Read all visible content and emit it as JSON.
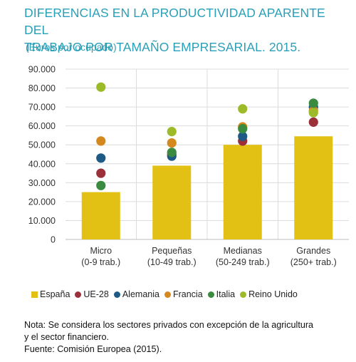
{
  "header": {
    "title_line1": "DIFERENCIAS EN LA PRODUCTIVIDAD APARENTE DEL",
    "title_line2": "TRABAJO POR TAMAÑO EMPRESARIAL. 2015.",
    "subtitle": "(Euros por ocupado)"
  },
  "colors": {
    "title": "#2aa0b8",
    "España": "#e3c014",
    "UE-28": "#9b2f3a",
    "Alemania": "#1f5a86",
    "Francia": "#d4891e",
    "Italia": "#3a8a3f",
    "Reino Unido": "#9dbb28"
  },
  "chart_data": {
    "type": "bar",
    "categories": [
      [
        "Micro",
        "(0-9 trab.)"
      ],
      [
        "Pequeñas",
        "(10-49 trab.)"
      ],
      [
        "Medianas",
        "(50-249 trab.)"
      ],
      [
        "Grandes",
        "(250+ trab.)"
      ]
    ],
    "bar_series": {
      "name": "España",
      "values": [
        25000,
        39000,
        50000,
        54500
      ]
    },
    "point_series": [
      {
        "name": "UE-28",
        "values": [
          35000,
          45000,
          52000,
          62000
        ]
      },
      {
        "name": "Alemania",
        "values": [
          43000,
          44000,
          54500,
          70000
        ]
      },
      {
        "name": "Francia",
        "values": [
          52000,
          51000,
          59500,
          68000
        ]
      },
      {
        "name": "Italia",
        "values": [
          28500,
          46000,
          58500,
          72000
        ]
      },
      {
        "name": "Reino Unido",
        "values": [
          80500,
          57000,
          69000,
          67000
        ]
      }
    ],
    "yticks": [
      "0",
      "10.000",
      "20.000",
      "30.000",
      "40.000",
      "50.000",
      "60.000",
      "70.000",
      "80.000",
      "90.000"
    ],
    "ylim": [
      0,
      90000
    ],
    "grid": true,
    "legend_position": "bottom",
    "title": "DIFERENCIAS EN LA PRODUCTIVIDAD APARENTE DEL TRABAJO POR TAMAÑO EMPRESARIAL. 2015.",
    "subtitle": "(Euros por ocupado)",
    "xlabel": "",
    "ylabel": ""
  },
  "legend": [
    {
      "label": "España",
      "shape": "square"
    },
    {
      "label": "UE-28",
      "shape": "circle"
    },
    {
      "label": "Alemania",
      "shape": "circle"
    },
    {
      "label": "Francia",
      "shape": "circle"
    },
    {
      "label": "Italia",
      "shape": "circle"
    },
    {
      "label": "Reino Unido",
      "shape": "circle"
    }
  ],
  "notes": {
    "line1": "Nota: Se considera los sectores privados con excepción de la agricultura",
    "line2": "y el sector financiero.",
    "line3": "Fuente: Comisión Europea (2015)."
  }
}
